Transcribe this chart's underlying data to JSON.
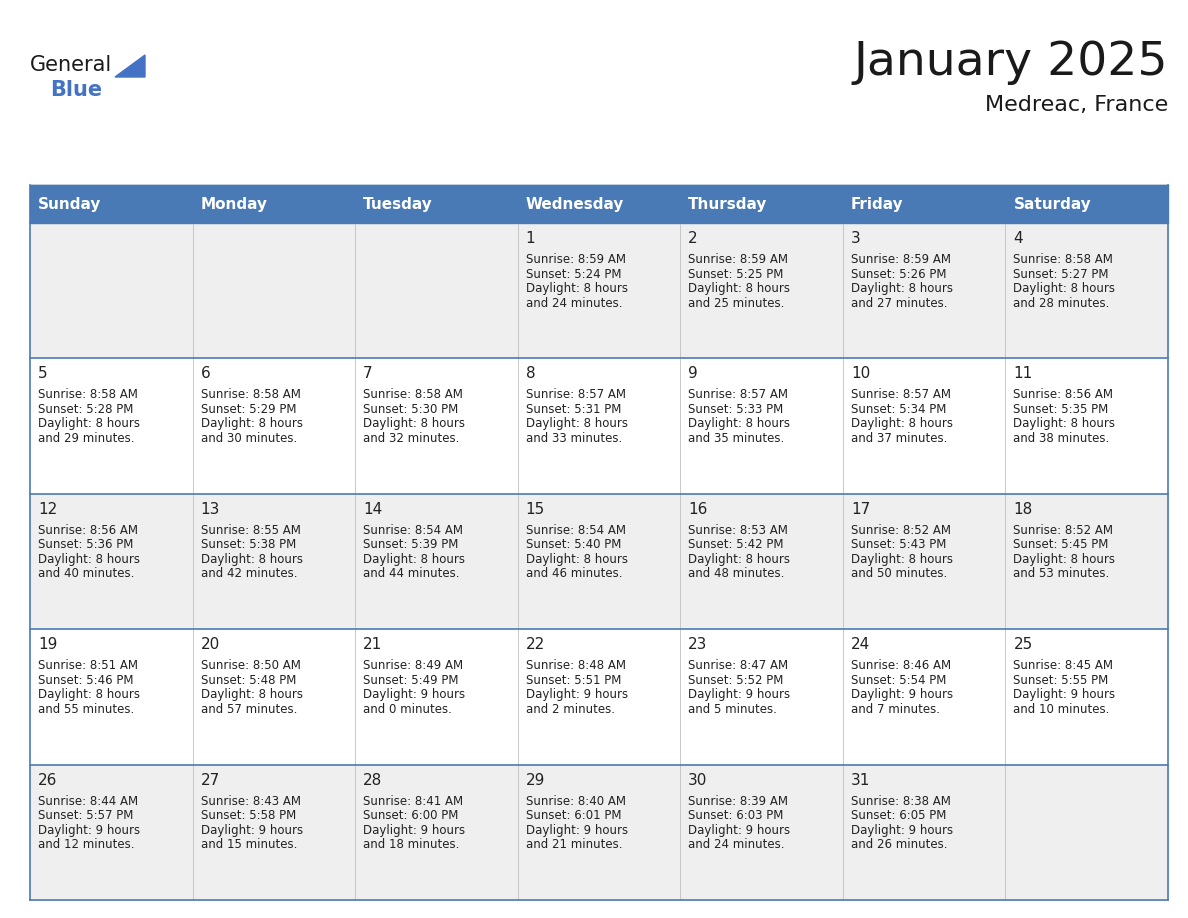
{
  "title": "January 2025",
  "subtitle": "Medreac, France",
  "header_color": "#4a7ab5",
  "header_text_color": "#FFFFFF",
  "days_of_week": [
    "Sunday",
    "Monday",
    "Tuesday",
    "Wednesday",
    "Thursday",
    "Friday",
    "Saturday"
  ],
  "row_colors": [
    "#efefef",
    "#ffffff"
  ],
  "text_color": "#222222",
  "line_color": "#4a7ab5",
  "grid_line_color": "#c0c0c0",
  "calendar_data": [
    [
      {
        "day": "",
        "sunrise": "",
        "sunset": "",
        "daylight_h": "",
        "daylight_m": ""
      },
      {
        "day": "",
        "sunrise": "",
        "sunset": "",
        "daylight_h": "",
        "daylight_m": ""
      },
      {
        "day": "",
        "sunrise": "",
        "sunset": "",
        "daylight_h": "",
        "daylight_m": ""
      },
      {
        "day": "1",
        "sunrise": "8:59 AM",
        "sunset": "5:24 PM",
        "daylight_h": "8 hours",
        "daylight_m": "and 24 minutes."
      },
      {
        "day": "2",
        "sunrise": "8:59 AM",
        "sunset": "5:25 PM",
        "daylight_h": "8 hours",
        "daylight_m": "and 25 minutes."
      },
      {
        "day": "3",
        "sunrise": "8:59 AM",
        "sunset": "5:26 PM",
        "daylight_h": "8 hours",
        "daylight_m": "and 27 minutes."
      },
      {
        "day": "4",
        "sunrise": "8:58 AM",
        "sunset": "5:27 PM",
        "daylight_h": "8 hours",
        "daylight_m": "and 28 minutes."
      }
    ],
    [
      {
        "day": "5",
        "sunrise": "8:58 AM",
        "sunset": "5:28 PM",
        "daylight_h": "8 hours",
        "daylight_m": "and 29 minutes."
      },
      {
        "day": "6",
        "sunrise": "8:58 AM",
        "sunset": "5:29 PM",
        "daylight_h": "8 hours",
        "daylight_m": "and 30 minutes."
      },
      {
        "day": "7",
        "sunrise": "8:58 AM",
        "sunset": "5:30 PM",
        "daylight_h": "8 hours",
        "daylight_m": "and 32 minutes."
      },
      {
        "day": "8",
        "sunrise": "8:57 AM",
        "sunset": "5:31 PM",
        "daylight_h": "8 hours",
        "daylight_m": "and 33 minutes."
      },
      {
        "day": "9",
        "sunrise": "8:57 AM",
        "sunset": "5:33 PM",
        "daylight_h": "8 hours",
        "daylight_m": "and 35 minutes."
      },
      {
        "day": "10",
        "sunrise": "8:57 AM",
        "sunset": "5:34 PM",
        "daylight_h": "8 hours",
        "daylight_m": "and 37 minutes."
      },
      {
        "day": "11",
        "sunrise": "8:56 AM",
        "sunset": "5:35 PM",
        "daylight_h": "8 hours",
        "daylight_m": "and 38 minutes."
      }
    ],
    [
      {
        "day": "12",
        "sunrise": "8:56 AM",
        "sunset": "5:36 PM",
        "daylight_h": "8 hours",
        "daylight_m": "and 40 minutes."
      },
      {
        "day": "13",
        "sunrise": "8:55 AM",
        "sunset": "5:38 PM",
        "daylight_h": "8 hours",
        "daylight_m": "and 42 minutes."
      },
      {
        "day": "14",
        "sunrise": "8:54 AM",
        "sunset": "5:39 PM",
        "daylight_h": "8 hours",
        "daylight_m": "and 44 minutes."
      },
      {
        "day": "15",
        "sunrise": "8:54 AM",
        "sunset": "5:40 PM",
        "daylight_h": "8 hours",
        "daylight_m": "and 46 minutes."
      },
      {
        "day": "16",
        "sunrise": "8:53 AM",
        "sunset": "5:42 PM",
        "daylight_h": "8 hours",
        "daylight_m": "and 48 minutes."
      },
      {
        "day": "17",
        "sunrise": "8:52 AM",
        "sunset": "5:43 PM",
        "daylight_h": "8 hours",
        "daylight_m": "and 50 minutes."
      },
      {
        "day": "18",
        "sunrise": "8:52 AM",
        "sunset": "5:45 PM",
        "daylight_h": "8 hours",
        "daylight_m": "and 53 minutes."
      }
    ],
    [
      {
        "day": "19",
        "sunrise": "8:51 AM",
        "sunset": "5:46 PM",
        "daylight_h": "8 hours",
        "daylight_m": "and 55 minutes."
      },
      {
        "day": "20",
        "sunrise": "8:50 AM",
        "sunset": "5:48 PM",
        "daylight_h": "8 hours",
        "daylight_m": "and 57 minutes."
      },
      {
        "day": "21",
        "sunrise": "8:49 AM",
        "sunset": "5:49 PM",
        "daylight_h": "9 hours",
        "daylight_m": "and 0 minutes."
      },
      {
        "day": "22",
        "sunrise": "8:48 AM",
        "sunset": "5:51 PM",
        "daylight_h": "9 hours",
        "daylight_m": "and 2 minutes."
      },
      {
        "day": "23",
        "sunrise": "8:47 AM",
        "sunset": "5:52 PM",
        "daylight_h": "9 hours",
        "daylight_m": "and 5 minutes."
      },
      {
        "day": "24",
        "sunrise": "8:46 AM",
        "sunset": "5:54 PM",
        "daylight_h": "9 hours",
        "daylight_m": "and 7 minutes."
      },
      {
        "day": "25",
        "sunrise": "8:45 AM",
        "sunset": "5:55 PM",
        "daylight_h": "9 hours",
        "daylight_m": "and 10 minutes."
      }
    ],
    [
      {
        "day": "26",
        "sunrise": "8:44 AM",
        "sunset": "5:57 PM",
        "daylight_h": "9 hours",
        "daylight_m": "and 12 minutes."
      },
      {
        "day": "27",
        "sunrise": "8:43 AM",
        "sunset": "5:58 PM",
        "daylight_h": "9 hours",
        "daylight_m": "and 15 minutes."
      },
      {
        "day": "28",
        "sunrise": "8:41 AM",
        "sunset": "6:00 PM",
        "daylight_h": "9 hours",
        "daylight_m": "and 18 minutes."
      },
      {
        "day": "29",
        "sunrise": "8:40 AM",
        "sunset": "6:01 PM",
        "daylight_h": "9 hours",
        "daylight_m": "and 21 minutes."
      },
      {
        "day": "30",
        "sunrise": "8:39 AM",
        "sunset": "6:03 PM",
        "daylight_h": "9 hours",
        "daylight_m": "and 24 minutes."
      },
      {
        "day": "31",
        "sunrise": "8:38 AM",
        "sunset": "6:05 PM",
        "daylight_h": "9 hours",
        "daylight_m": "and 26 minutes."
      },
      {
        "day": "",
        "sunrise": "",
        "sunset": "",
        "daylight_h": "",
        "daylight_m": ""
      }
    ]
  ],
  "logo_color_general": "#1a1a1a",
  "logo_color_blue": "#4472C4",
  "logo_triangle_color": "#4472C4",
  "title_fontsize": 34,
  "subtitle_fontsize": 16,
  "header_fontsize": 11,
  "day_number_fontsize": 11,
  "cell_text_fontsize": 8.5
}
